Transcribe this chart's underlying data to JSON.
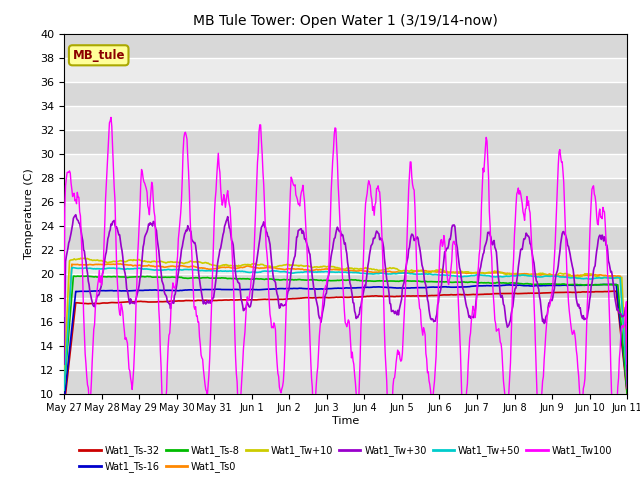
{
  "title": "MB Tule Tower: Open Water 1 (3/19/14-now)",
  "xlabel": "Time",
  "ylabel": "Temperature (C)",
  "ylim": [
    10,
    40
  ],
  "yticks": [
    10,
    12,
    14,
    16,
    18,
    20,
    22,
    24,
    26,
    28,
    30,
    32,
    34,
    36,
    38,
    40
  ],
  "series_colors": {
    "Wat1_Ts-32": "#cc0000",
    "Wat1_Ts-16": "#0000cc",
    "Wat1_Ts-8": "#00bb00",
    "Wat1_Ts0": "#ff8800",
    "Wat1_Tw+10": "#cccc00",
    "Wat1_Tw+30": "#9900cc",
    "Wat1_Tw+50": "#00cccc",
    "Wat1_Tw100": "#ff00ff"
  },
  "xticklabels": [
    "May 27",
    "May 28",
    "May 29",
    "May 30",
    "May 31",
    "Jun 1",
    "Jun 2",
    "Jun 3",
    "Jun 4",
    "Jun 5",
    "Jun 6",
    "Jun 7",
    "Jun 8",
    "Jun 9",
    "Jun 10",
    "Jun 11"
  ],
  "plot_bg": "#ebebeb"
}
